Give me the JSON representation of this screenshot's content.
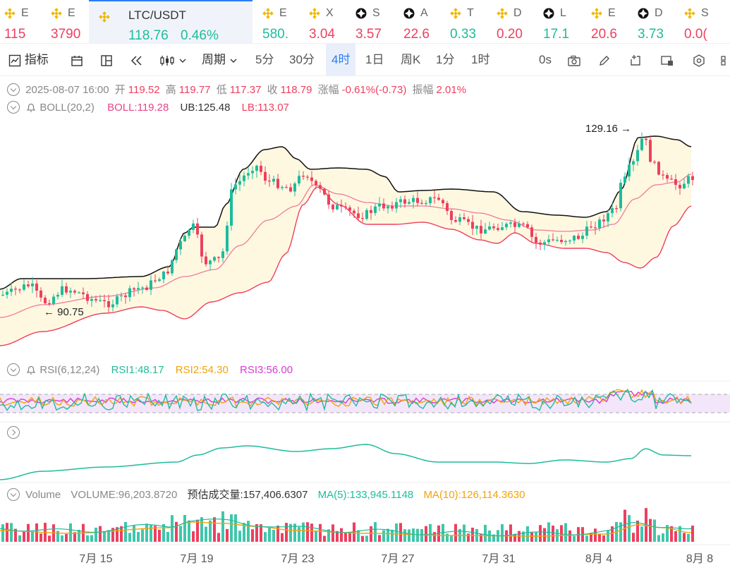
{
  "tickers": [
    {
      "sym": "E",
      "val": "115",
      "dir": "dn",
      "icon": "binance-icon",
      "x": 6
    },
    {
      "sym": "E",
      "val": "3790",
      "dir": "dn",
      "icon": "binance-icon",
      "x": 72
    },
    {
      "sym": "LTC/USDT",
      "val": "118.76",
      "pct": "0.46%",
      "dir": "up",
      "icon": "binance-icon",
      "x": 126,
      "active": true
    },
    {
      "sym": "E",
      "val": "580.",
      "dir": "up",
      "icon": "binance-icon",
      "x": 372
    },
    {
      "sym": "X",
      "val": "3.04",
      "dir": "dn",
      "icon": "binance-icon",
      "x": 438
    },
    {
      "sym": "S",
      "val": "3.57",
      "dir": "dn",
      "icon": "gate-icon",
      "x": 504
    },
    {
      "sym": "A",
      "val": "22.6",
      "dir": "dn",
      "icon": "gate-icon",
      "x": 572
    },
    {
      "sym": "T",
      "val": "0.33",
      "dir": "up",
      "icon": "binance-icon",
      "x": 638
    },
    {
      "sym": "D",
      "val": "0.20",
      "dir": "dn",
      "icon": "binance-icon",
      "x": 704
    },
    {
      "sym": "L",
      "val": "17.1",
      "dir": "up",
      "icon": "gate-icon",
      "x": 770
    },
    {
      "sym": "E",
      "val": "20.6",
      "dir": "dn",
      "icon": "binance-icon",
      "x": 838
    },
    {
      "sym": "D",
      "val": "3.73",
      "dir": "up",
      "icon": "gate-icon",
      "x": 904
    },
    {
      "sym": "S",
      "val": "0.0(",
      "dir": "dn",
      "icon": "binance-icon",
      "x": 970
    }
  ],
  "toolbar": {
    "indicator_label": "指标",
    "period_label": "周期",
    "periods": [
      "5分",
      "30分",
      "4时",
      "1日",
      "周K",
      "1分",
      "1时"
    ],
    "selected_period": "4时",
    "countdown": "0s"
  },
  "ohlc": {
    "time": "2025-08-07 16:00",
    "open_label": "开",
    "open": "119.52",
    "high_label": "高",
    "high": "119.77",
    "low_label": "低",
    "low": "117.37",
    "close_label": "收",
    "close": "118.79",
    "change_label": "涨幅",
    "change": "-0.61%(-0.73)",
    "amp_label": "振幅",
    "amp": "2.01%"
  },
  "boll": {
    "name": "BOLL(20,2)",
    "mid": "BOLL:119.28",
    "ub": "UB:125.48",
    "lb": "LB:113.07"
  },
  "rsi": {
    "name": "RSI(6,12,24)",
    "rsi1": "RSI1:48.17",
    "rsi2": "RSI2:54.30",
    "rsi3": "RSI3:56.00"
  },
  "volume": {
    "name": "Volume",
    "vol": "VOLUME:96,203.8720",
    "est": "预估成交量:157,406.6307",
    "ma5": "MA(5):133,945.1148",
    "ma10": "MA(10):126,114.3630"
  },
  "annotations": {
    "high": "129.16",
    "low": "90.75"
  },
  "x_axis": [
    "7月 15",
    "7月 19",
    "7月 23",
    "7月 27",
    "7月 31",
    "8月 4",
    "8月 8"
  ],
  "colors": {
    "up": "#1ebc9c",
    "down": "#ee3f5f",
    "accent": "#2a7cf6",
    "boll_fill": "#fff8e1"
  }
}
